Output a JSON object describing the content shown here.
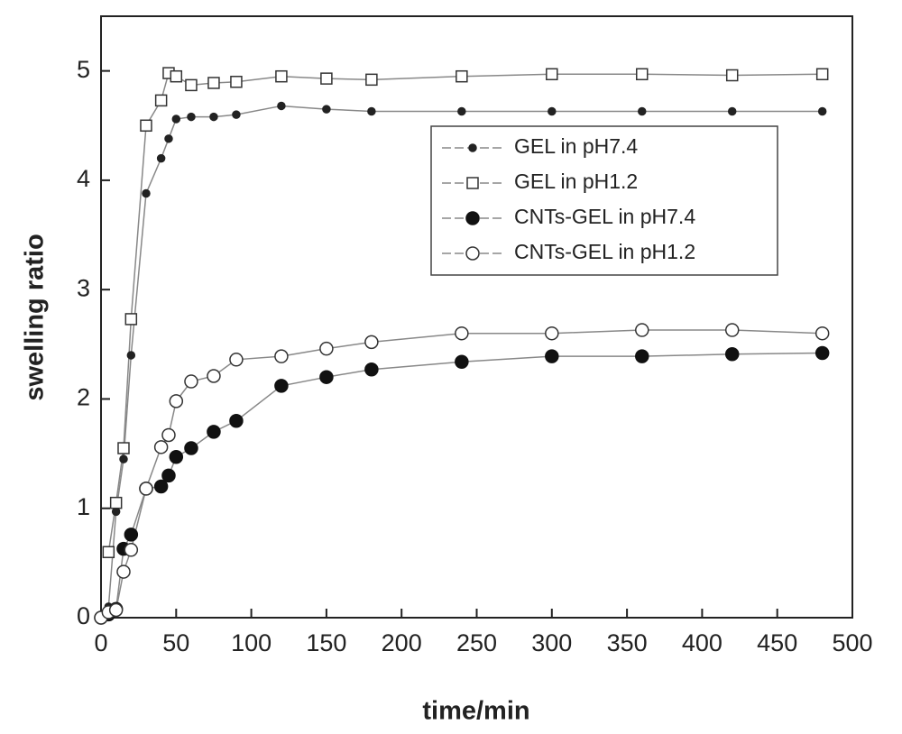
{
  "chart_data": {
    "type": "line",
    "x_label": "time/min",
    "y_label": "swelling ratio",
    "x": [
      0,
      5,
      10,
      15,
      20,
      30,
      40,
      45,
      50,
      60,
      75,
      90,
      120,
      150,
      180,
      240,
      300,
      360,
      420,
      480
    ],
    "series": [
      {
        "name": "GEL in pH7.4",
        "color": "#222222",
        "marker": "dot",
        "filled": true,
        "values": [
          0,
          0.1,
          0.97,
          1.45,
          2.4,
          3.88,
          4.2,
          4.38,
          4.56,
          4.58,
          4.58,
          4.6,
          4.68,
          4.65,
          4.63,
          4.63,
          4.63,
          4.63,
          4.63,
          4.63
        ]
      },
      {
        "name": "GEL in pH1.2",
        "color": "#333333",
        "marker": "square",
        "filled": false,
        "values": [
          null,
          0.6,
          1.05,
          1.55,
          2.73,
          4.5,
          4.73,
          4.98,
          4.95,
          4.87,
          4.89,
          4.9,
          4.95,
          4.93,
          4.92,
          4.95,
          4.97,
          4.97,
          4.96,
          4.97
        ]
      },
      {
        "name": "CNTs-GEL in pH7.4",
        "color": "#111111",
        "marker": "circle",
        "filled": true,
        "values": [
          0,
          0.03,
          0.08,
          0.63,
          0.76,
          1.18,
          1.2,
          1.3,
          1.47,
          1.55,
          1.7,
          1.8,
          2.12,
          2.2,
          2.27,
          2.34,
          2.39,
          2.39,
          2.41,
          2.42
        ]
      },
      {
        "name": "CNTs-GEL in pH1.2",
        "color": "#333333",
        "marker": "circle",
        "filled": false,
        "values": [
          0,
          0.05,
          0.07,
          0.42,
          0.62,
          1.18,
          1.56,
          1.67,
          1.98,
          2.16,
          2.21,
          2.36,
          2.39,
          2.46,
          2.52,
          2.6,
          2.6,
          2.63,
          2.63,
          2.6
        ]
      }
    ],
    "xlim": [
      0,
      500
    ],
    "ylim": [
      0,
      5.5
    ],
    "xticks": [
      0,
      50,
      100,
      150,
      200,
      250,
      300,
      350,
      400,
      450,
      500
    ],
    "yticks": [
      0,
      1,
      2,
      3,
      4,
      5
    ],
    "grid": false,
    "legend": "upper right",
    "line_color": "#888888"
  }
}
